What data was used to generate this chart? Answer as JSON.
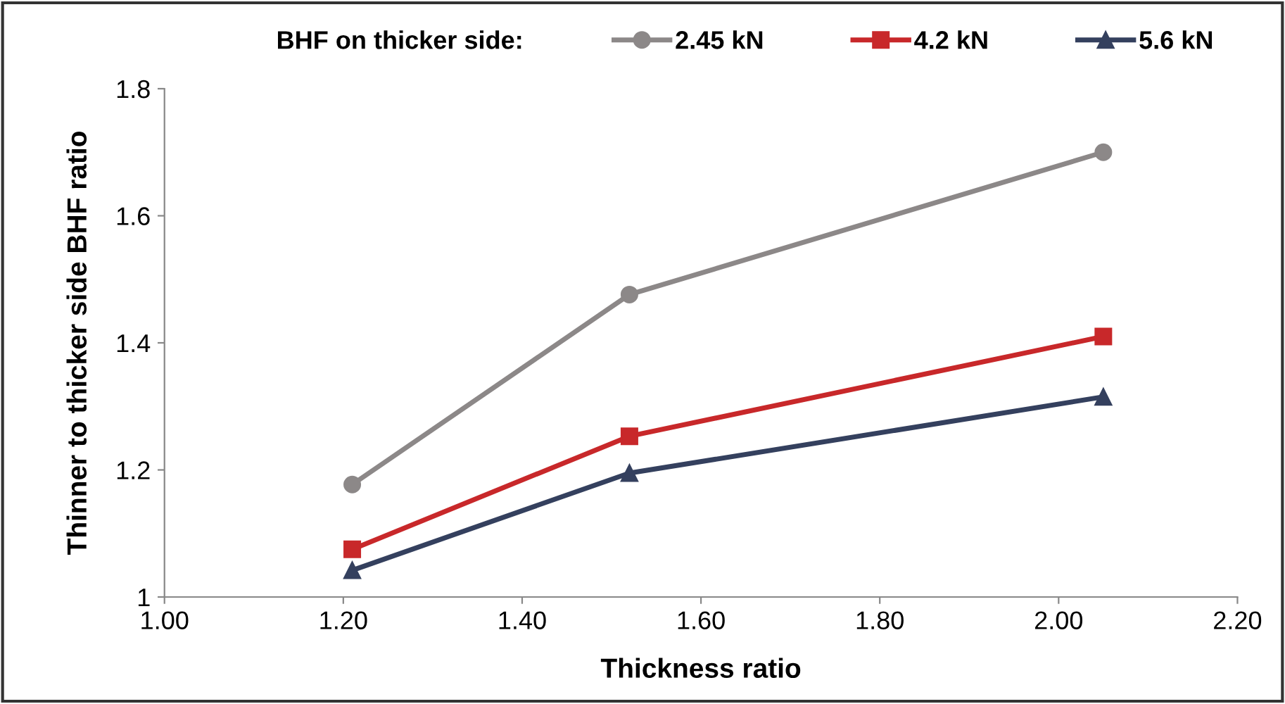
{
  "chart_data": {
    "type": "line",
    "xlabel": "Thickness ratio",
    "ylabel": "Thinner to thicker side BHF ratio",
    "legend_title": "BHF on thicker side:",
    "x": [
      1.21,
      1.52,
      2.05
    ],
    "series": [
      {
        "name": "2.45 kN",
        "color": "#8c8888",
        "marker": "circle",
        "values": [
          1.177,
          1.476,
          1.7
        ]
      },
      {
        "name": "4.2 kN",
        "color": "#c8282a",
        "marker": "square",
        "values": [
          1.075,
          1.253,
          1.41
        ]
      },
      {
        "name": "5.6 kN",
        "color": "#34405e",
        "marker": "triangle",
        "values": [
          1.042,
          1.195,
          1.315
        ]
      }
    ],
    "xlim": [
      1.0,
      2.2
    ],
    "xticks": [
      {
        "value": 1.0,
        "label": "1.00"
      },
      {
        "value": 1.2,
        "label": "1.20"
      },
      {
        "value": 1.4,
        "label": "1.40"
      },
      {
        "value": 1.6,
        "label": "1.60"
      },
      {
        "value": 1.8,
        "label": "1.80"
      },
      {
        "value": 2.0,
        "label": "2.00"
      },
      {
        "value": 2.2,
        "label": "2.20"
      }
    ],
    "ylim": [
      1,
      1.8
    ],
    "yticks": [
      1,
      1.2,
      1.4,
      1.6,
      1.8
    ],
    "grid": false,
    "legend": "top",
    "line_style": "solid"
  }
}
